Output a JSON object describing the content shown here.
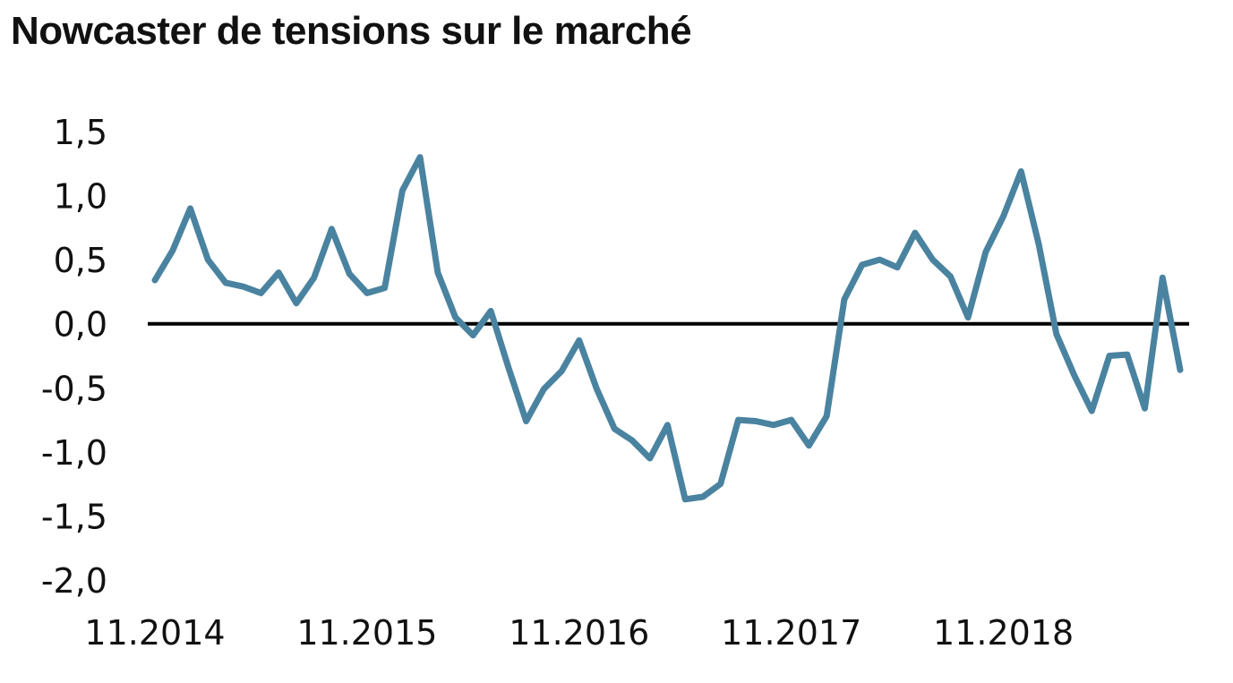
{
  "chart_data": {
    "type": "line",
    "title": "Nowcaster de tensions sur le marché",
    "xlabel": "",
    "ylabel": "",
    "ylim": [
      -2.0,
      1.5
    ],
    "yticks": [
      1.5,
      1.0,
      0.5,
      0.0,
      -0.5,
      -1.0,
      -1.5,
      -2.0
    ],
    "ytick_labels": [
      "1,5",
      "1,0",
      "0,5",
      "0,0",
      "-0,5",
      "-1,0",
      "-1,5",
      "-2,0"
    ],
    "xtick_labels": [
      "11.2014",
      "11.2015",
      "11.2016",
      "11.2017",
      "11.2018"
    ],
    "xtick_index": [
      0,
      12,
      24,
      36,
      48
    ],
    "grid": false,
    "legend": "none",
    "zero_line": true,
    "colors": {
      "series": "#4a83a0",
      "zero_line": "#000000",
      "text": "#111111"
    },
    "series": [
      {
        "values": [
          0.34,
          0.57,
          0.9,
          0.5,
          0.32,
          0.29,
          0.24,
          0.4,
          0.16,
          0.36,
          0.74,
          0.39,
          0.24,
          0.28,
          1.04,
          1.3,
          0.4,
          0.05,
          -0.09,
          0.1,
          -0.34,
          -0.76,
          -0.51,
          -0.37,
          -0.13,
          -0.51,
          -0.82,
          -0.91,
          -1.05,
          -0.79,
          -1.37,
          -1.35,
          -1.25,
          -0.75,
          -0.76,
          -0.79,
          -0.75,
          -0.95,
          -0.72,
          0.19,
          0.46,
          0.5,
          0.44,
          0.71,
          0.5,
          0.37,
          0.05,
          0.56,
          0.84,
          1.19,
          0.62,
          -0.08,
          -0.4,
          -0.68,
          -0.25,
          -0.24,
          -0.66,
          0.36,
          -0.36
        ]
      }
    ]
  }
}
